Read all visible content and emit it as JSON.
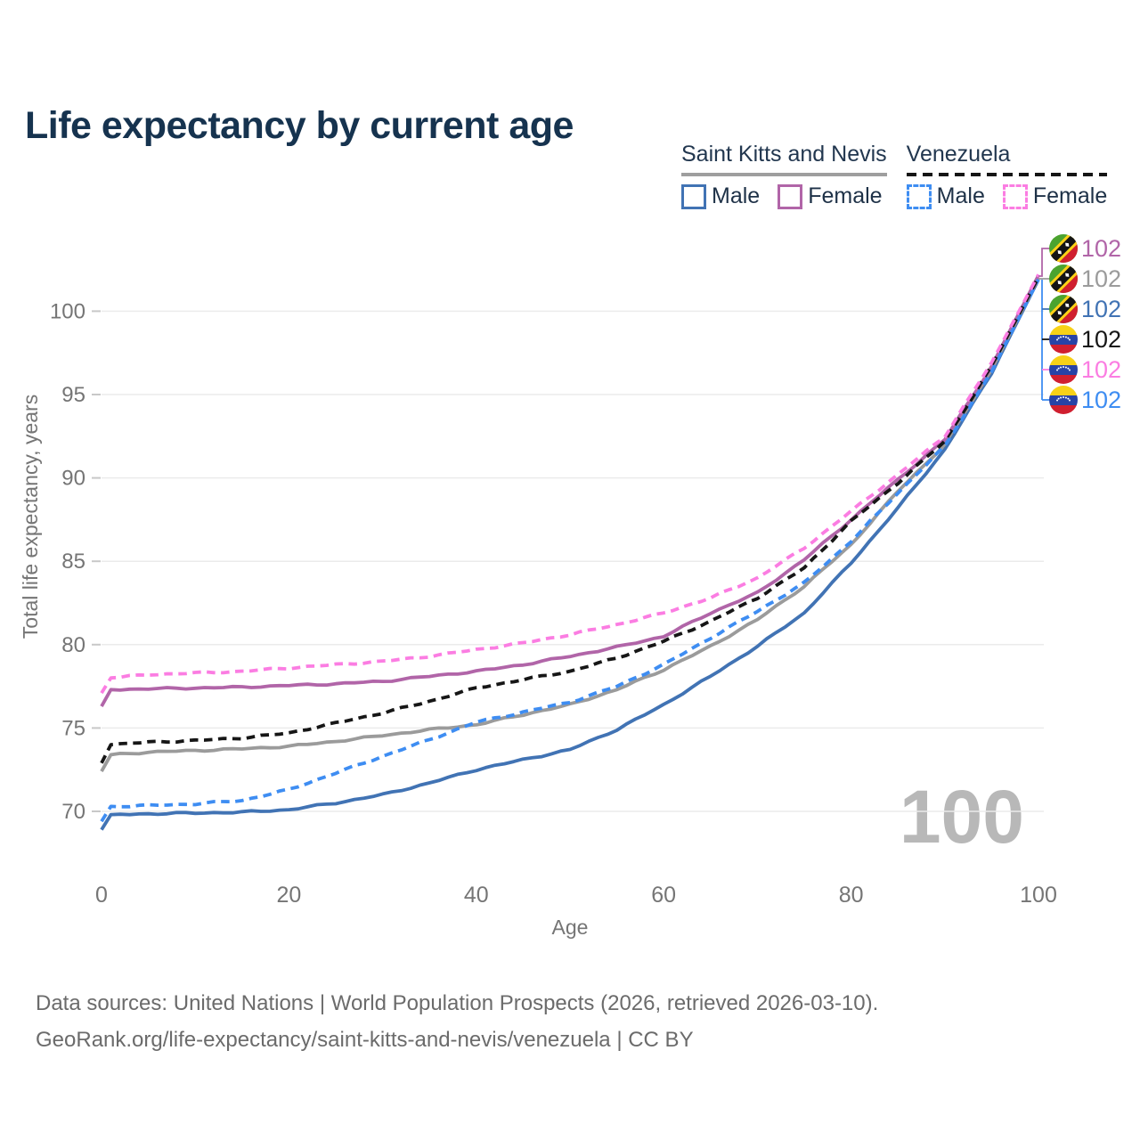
{
  "title": "Life expectancy by current age",
  "legend": {
    "groups": [
      {
        "label": "Saint Kitts and Nevis",
        "line_style": "solid",
        "underline_color": "#9e9e9e",
        "items": [
          {
            "label": "Male",
            "color": "#4173b4",
            "dashed": false
          },
          {
            "label": "Female",
            "color": "#b165a8",
            "dashed": false
          }
        ]
      },
      {
        "label": "Venezuela",
        "line_style": "dashed",
        "underline_color": "#151515",
        "items": [
          {
            "label": "Male",
            "color": "#3e8df2",
            "dashed": true
          },
          {
            "label": "Female",
            "color": "#fb7de2",
            "dashed": true
          }
        ]
      }
    ]
  },
  "watermark": "100",
  "footer": {
    "line1": "Data sources: United Nations | World Population Prospects (2026, retrieved 2026-03-10).",
    "line2": "GeoRank.org/life-expectancy/saint-kitts-and-nevis/venezuela | CC BY"
  },
  "colors": {
    "title": "#16334f",
    "axis_text": "#757575",
    "grid": "#ebebeb",
    "tick": "#c8c8c8",
    "watermark": "#b8b8b8",
    "legend_text": "#1e3147"
  },
  "chart_data": {
    "type": "line",
    "title": "Life expectancy by current age",
    "xlabel": "Age",
    "ylabel": "Total life expectancy, years",
    "xlim": [
      0,
      100
    ],
    "ylim": [
      68,
      103.5
    ],
    "x_ticks": [
      0,
      20,
      40,
      60,
      80,
      100
    ],
    "y_ticks": [
      70,
      75,
      80,
      85,
      90,
      95,
      100
    ],
    "grid": true,
    "legend_position": "top-right",
    "ages": [
      0,
      1,
      5,
      10,
      15,
      20,
      25,
      30,
      35,
      40,
      45,
      50,
      55,
      60,
      65,
      70,
      75,
      80,
      85,
      90,
      95,
      100
    ],
    "series": [
      {
        "id": "skn_male",
        "name": "Saint Kitts and Nevis Male",
        "color": "#4173b4",
        "dashed": false,
        "values": [
          68.9,
          69.8,
          69.85,
          69.9,
          69.95,
          70.1,
          70.5,
          71.0,
          71.7,
          72.5,
          73.1,
          73.7,
          74.9,
          76.4,
          78.1,
          79.9,
          81.9,
          84.9,
          88.2,
          91.7,
          96.3,
          101.9
        ]
      },
      {
        "id": "skn_both",
        "name": "Saint Kitts and Nevis Both sexes",
        "color": "#9b9b9b",
        "dashed": false,
        "values": [
          72.4,
          73.4,
          73.55,
          73.65,
          73.75,
          73.9,
          74.2,
          74.55,
          74.9,
          75.2,
          75.8,
          76.4,
          77.3,
          78.5,
          79.9,
          81.5,
          83.5,
          86.0,
          89.2,
          92.0,
          96.5,
          102.0
        ]
      },
      {
        "id": "skn_female",
        "name": "Saint Kitts and Nevis Female",
        "color": "#b165a8",
        "dashed": false,
        "values": [
          76.3,
          77.3,
          77.35,
          77.4,
          77.45,
          77.55,
          77.65,
          77.8,
          78.1,
          78.4,
          78.8,
          79.3,
          79.85,
          80.5,
          81.9,
          83.1,
          85.1,
          87.5,
          89.9,
          92.3,
          96.7,
          102.15
        ]
      },
      {
        "id": "ven_male",
        "name": "Venezuela Male",
        "color": "#3e8df2",
        "dashed": true,
        "values": [
          69.4,
          70.3,
          70.35,
          70.45,
          70.65,
          71.3,
          72.3,
          73.3,
          74.3,
          75.35,
          75.95,
          76.55,
          77.5,
          78.8,
          80.4,
          82.0,
          83.7,
          86.2,
          89.1,
          91.9,
          96.4,
          101.9
        ]
      },
      {
        "id": "ven_both",
        "name": "Venezuela Both sexes",
        "color": "#161616",
        "dashed": true,
        "values": [
          72.9,
          74.0,
          74.15,
          74.25,
          74.4,
          74.7,
          75.3,
          75.9,
          76.6,
          77.4,
          77.9,
          78.4,
          79.2,
          80.2,
          81.4,
          82.8,
          84.6,
          87.4,
          89.7,
          92.2,
          96.7,
          102.05
        ]
      },
      {
        "id": "ven_female",
        "name": "Venezuela Female",
        "color": "#fb7de2",
        "dashed": true,
        "values": [
          77.1,
          78.0,
          78.2,
          78.3,
          78.4,
          78.6,
          78.8,
          79.0,
          79.3,
          79.7,
          80.1,
          80.6,
          81.2,
          81.9,
          82.8,
          84.0,
          85.8,
          88.0,
          90.2,
          92.5,
          96.9,
          102.2
        ]
      }
    ],
    "end_labels": [
      {
        "series": "skn_female",
        "flag": "kn",
        "text": "102"
      },
      {
        "series": "skn_both",
        "flag": "kn",
        "text": "102"
      },
      {
        "series": "skn_male",
        "flag": "kn",
        "text": "102"
      },
      {
        "series": "ven_both",
        "flag": "ve",
        "text": "102"
      },
      {
        "series": "ven_female",
        "flag": "ve",
        "text": "102"
      },
      {
        "series": "ven_male",
        "flag": "ve",
        "text": "102"
      }
    ]
  }
}
